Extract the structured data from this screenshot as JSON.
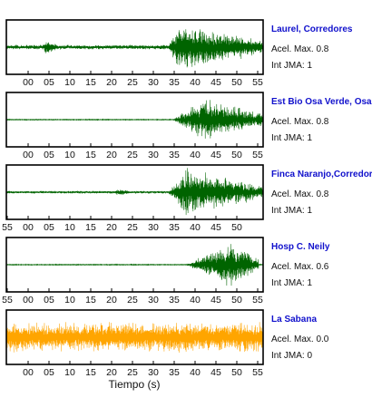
{
  "chart_data": {
    "type": "line",
    "xlabel": "Tiempo (s)",
    "panels": [
      {
        "station": "Laurel, Corredores",
        "accel_label": "Acel. Max. 0.8",
        "jma_label": "Int JMA: 1",
        "color": "#006400",
        "ticks": [
          "00",
          "05",
          "10",
          "15",
          "20",
          "25",
          "30",
          "35",
          "40",
          "45",
          "50",
          "55"
        ],
        "noise_level": 0.1,
        "events": [
          {
            "start": 8,
            "peak": 9,
            "end": 11,
            "amplitude": 0.25
          },
          {
            "start": 36,
            "peak": 38,
            "end": 57,
            "amplitude": 0.95
          }
        ]
      },
      {
        "station": "Est Bio Osa Verde, Osa",
        "accel_label": "Acel. Max. 0.8",
        "jma_label": "Int JMA: 1",
        "color": "#006400",
        "ticks": [
          "00",
          "05",
          "10",
          "15",
          "20",
          "25",
          "30",
          "35",
          "40",
          "45",
          "50",
          "55"
        ],
        "noise_level": 0.02,
        "events": [
          {
            "start": 37,
            "peak": 44,
            "end": 57,
            "amplitude": 1.0
          }
        ]
      },
      {
        "station": "Finca Naranjo,Corredores",
        "accel_label": "Acel. Max. 0.8",
        "jma_label": "Int JMA: 1",
        "color": "#006400",
        "ticks": [
          "55",
          "00",
          "05",
          "10",
          "15",
          "20",
          "25",
          "30",
          "35",
          "40",
          "45",
          "50"
        ],
        "noise_level": 0.06,
        "events": [
          {
            "start": 24,
            "peak": 25,
            "end": 27,
            "amplitude": 0.12
          },
          {
            "start": 36,
            "peak": 40,
            "end": 57,
            "amplitude": 1.0
          }
        ]
      },
      {
        "station": "Hosp C. Neily",
        "accel_label": "Acel. Max. 0.6",
        "jma_label": "Int JMA: 1",
        "color": "#006400",
        "ticks": [
          "55",
          "00",
          "05",
          "10",
          "15",
          "20",
          "25",
          "30",
          "35",
          "40",
          "45",
          "50",
          "55"
        ],
        "noise_level": 0.02,
        "events": [
          {
            "start": 40,
            "peak": 50,
            "end": 56,
            "amplitude": 1.0
          }
        ]
      },
      {
        "station": "La Sabana",
        "accel_label": "Acel. Max. 0.0",
        "jma_label": "Int JMA: 0",
        "color": "#ffa500",
        "ticks": [
          "00",
          "05",
          "10",
          "15",
          "20",
          "25",
          "30",
          "35",
          "40",
          "45",
          "50",
          "55"
        ],
        "noise_level": 0.65,
        "events": []
      }
    ]
  }
}
